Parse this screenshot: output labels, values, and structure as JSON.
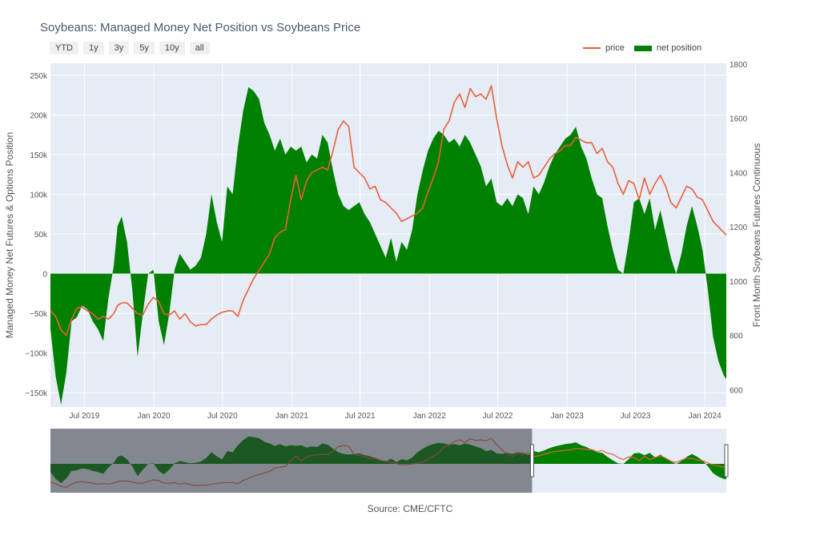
{
  "title": "Soybeans: Managed Money Net Position vs Soybeans Price",
  "range_buttons": [
    "YTD",
    "1y",
    "3y",
    "5y",
    "10y",
    "all"
  ],
  "source": "Source: CME/CFTC",
  "chart_data": {
    "type": "area",
    "x_ticks": [
      "Jul 2019",
      "Jan 2020",
      "Jul 2020",
      "Jan 2021",
      "Jul 2021",
      "Jan 2022",
      "Jul 2022",
      "Jan 2023",
      "Jul 2023",
      "Jan 2024"
    ],
    "x_range": [
      "2019-04-02",
      "2024-02-27"
    ],
    "ylabel": "Managed Money Net Futures & Options Position",
    "y2label": "Front Month Soybeans Futures Continuous",
    "yticks": [
      "250k",
      "200k",
      "150k",
      "100k",
      "50k",
      "0",
      "−50k",
      "−100k",
      "−150k"
    ],
    "y2ticks": [
      "1800",
      "1600",
      "1400",
      "1200",
      "1000",
      "800",
      "600"
    ],
    "ylim": [
      -168000,
      265000
    ],
    "y2lim": [
      536,
      1803
    ],
    "legend": {
      "price": "price",
      "net_position": "net position",
      "placement": "top-right"
    },
    "colors": {
      "price": "#e8603c",
      "net_position": "#008000",
      "plot_bg": "#e5ecf6"
    },
    "range_selector_start": "2022-09-30",
    "series": [
      {
        "name": "net position",
        "points": [
          [
            "2019-04-02",
            -70000
          ],
          [
            "2019-04-16",
            -130000
          ],
          [
            "2019-04-30",
            -165000
          ],
          [
            "2019-05-14",
            -125000
          ],
          [
            "2019-05-28",
            -60000
          ],
          [
            "2019-06-11",
            -55000
          ],
          [
            "2019-06-25",
            -40000
          ],
          [
            "2019-07-09",
            -45000
          ],
          [
            "2019-07-23",
            -60000
          ],
          [
            "2019-08-06",
            -70000
          ],
          [
            "2019-08-20",
            -85000
          ],
          [
            "2019-09-03",
            -30000
          ],
          [
            "2019-09-17",
            10000
          ],
          [
            "2019-09-27",
            60000
          ],
          [
            "2019-10-08",
            72000
          ],
          [
            "2019-10-22",
            40000
          ],
          [
            "2019-11-05",
            -20000
          ],
          [
            "2019-11-19",
            -105000
          ],
          [
            "2019-12-03",
            -50000
          ],
          [
            "2019-12-17",
            0
          ],
          [
            "2019-12-31",
            5000
          ],
          [
            "2020-01-14",
            -60000
          ],
          [
            "2020-01-28",
            -90000
          ],
          [
            "2020-02-11",
            -50000
          ],
          [
            "2020-02-25",
            5000
          ],
          [
            "2020-03-10",
            25000
          ],
          [
            "2020-03-24",
            15000
          ],
          [
            "2020-04-07",
            5000
          ],
          [
            "2020-04-21",
            10000
          ],
          [
            "2020-05-05",
            20000
          ],
          [
            "2020-05-19",
            50000
          ],
          [
            "2020-06-02",
            100000
          ],
          [
            "2020-06-16",
            65000
          ],
          [
            "2020-06-30",
            40000
          ],
          [
            "2020-07-14",
            110000
          ],
          [
            "2020-07-28",
            100000
          ],
          [
            "2020-08-11",
            160000
          ],
          [
            "2020-08-25",
            205000
          ],
          [
            "2020-09-08",
            235000
          ],
          [
            "2020-09-22",
            230000
          ],
          [
            "2020-10-06",
            220000
          ],
          [
            "2020-10-20",
            190000
          ],
          [
            "2020-11-03",
            175000
          ],
          [
            "2020-11-17",
            155000
          ],
          [
            "2020-12-01",
            170000
          ],
          [
            "2020-12-15",
            150000
          ],
          [
            "2020-12-29",
            160000
          ],
          [
            "2021-01-12",
            155000
          ],
          [
            "2021-01-26",
            160000
          ],
          [
            "2021-02-09",
            140000
          ],
          [
            "2021-02-23",
            150000
          ],
          [
            "2021-03-09",
            145000
          ],
          [
            "2021-03-23",
            175000
          ],
          [
            "2021-04-06",
            165000
          ],
          [
            "2021-04-20",
            130000
          ],
          [
            "2021-05-04",
            100000
          ],
          [
            "2021-05-18",
            85000
          ],
          [
            "2021-06-01",
            80000
          ],
          [
            "2021-06-15",
            85000
          ],
          [
            "2021-06-29",
            90000
          ],
          [
            "2021-07-13",
            75000
          ],
          [
            "2021-07-27",
            65000
          ],
          [
            "2021-08-10",
            50000
          ],
          [
            "2021-08-24",
            35000
          ],
          [
            "2021-09-07",
            20000
          ],
          [
            "2021-09-21",
            45000
          ],
          [
            "2021-10-05",
            15000
          ],
          [
            "2021-10-19",
            40000
          ],
          [
            "2021-11-02",
            30000
          ],
          [
            "2021-11-16",
            55000
          ],
          [
            "2021-11-30",
            100000
          ],
          [
            "2021-12-14",
            130000
          ],
          [
            "2021-12-28",
            155000
          ],
          [
            "2022-01-11",
            170000
          ],
          [
            "2022-01-25",
            180000
          ],
          [
            "2022-02-08",
            175000
          ],
          [
            "2022-02-22",
            165000
          ],
          [
            "2022-03-08",
            170000
          ],
          [
            "2022-03-22",
            160000
          ],
          [
            "2022-04-05",
            175000
          ],
          [
            "2022-04-19",
            165000
          ],
          [
            "2022-05-03",
            150000
          ],
          [
            "2022-05-17",
            135000
          ],
          [
            "2022-05-31",
            110000
          ],
          [
            "2022-06-14",
            120000
          ],
          [
            "2022-06-28",
            90000
          ],
          [
            "2022-07-12",
            85000
          ],
          [
            "2022-07-26",
            95000
          ],
          [
            "2022-08-09",
            85000
          ],
          [
            "2022-08-23",
            100000
          ],
          [
            "2022-09-06",
            95000
          ],
          [
            "2022-09-20",
            75000
          ],
          [
            "2022-10-04",
            110000
          ],
          [
            "2022-10-18",
            100000
          ],
          [
            "2022-11-01",
            115000
          ],
          [
            "2022-11-15",
            135000
          ],
          [
            "2022-11-29",
            150000
          ],
          [
            "2022-12-13",
            160000
          ],
          [
            "2022-12-27",
            170000
          ],
          [
            "2023-01-10",
            175000
          ],
          [
            "2023-01-24",
            185000
          ],
          [
            "2023-02-07",
            160000
          ],
          [
            "2023-02-21",
            145000
          ],
          [
            "2023-03-07",
            120000
          ],
          [
            "2023-03-21",
            100000
          ],
          [
            "2023-04-04",
            95000
          ],
          [
            "2023-04-18",
            60000
          ],
          [
            "2023-05-02",
            30000
          ],
          [
            "2023-05-16",
            5000
          ],
          [
            "2023-05-30",
            0
          ],
          [
            "2023-06-13",
            40000
          ],
          [
            "2023-06-27",
            90000
          ],
          [
            "2023-07-11",
            95000
          ],
          [
            "2023-07-25",
            75000
          ],
          [
            "2023-08-08",
            95000
          ],
          [
            "2023-08-22",
            55000
          ],
          [
            "2023-09-05",
            80000
          ],
          [
            "2023-09-19",
            50000
          ],
          [
            "2023-10-03",
            20000
          ],
          [
            "2023-10-17",
            0
          ],
          [
            "2023-10-31",
            25000
          ],
          [
            "2023-11-14",
            60000
          ],
          [
            "2023-11-28",
            85000
          ],
          [
            "2023-12-12",
            60000
          ],
          [
            "2023-12-26",
            30000
          ],
          [
            "2024-01-09",
            -20000
          ],
          [
            "2024-01-23",
            -80000
          ],
          [
            "2024-02-06",
            -110000
          ],
          [
            "2024-02-20",
            -128000
          ],
          [
            "2024-02-27",
            -133000
          ]
        ]
      },
      {
        "name": "price",
        "points": [
          [
            "2019-04-02",
            890
          ],
          [
            "2019-04-16",
            870
          ],
          [
            "2019-04-30",
            820
          ],
          [
            "2019-05-14",
            800
          ],
          [
            "2019-05-28",
            860
          ],
          [
            "2019-06-11",
            900
          ],
          [
            "2019-06-25",
            905
          ],
          [
            "2019-07-09",
            890
          ],
          [
            "2019-07-23",
            880
          ],
          [
            "2019-08-06",
            860
          ],
          [
            "2019-08-20",
            870
          ],
          [
            "2019-09-03",
            860
          ],
          [
            "2019-09-17",
            880
          ],
          [
            "2019-09-27",
            910
          ],
          [
            "2019-10-08",
            920
          ],
          [
            "2019-10-22",
            920
          ],
          [
            "2019-11-05",
            900
          ],
          [
            "2019-11-19",
            880
          ],
          [
            "2019-12-03",
            875
          ],
          [
            "2019-12-17",
            915
          ],
          [
            "2019-12-31",
            940
          ],
          [
            "2020-01-14",
            925
          ],
          [
            "2020-01-28",
            880
          ],
          [
            "2020-02-11",
            875
          ],
          [
            "2020-02-25",
            890
          ],
          [
            "2020-03-10",
            860
          ],
          [
            "2020-03-24",
            880
          ],
          [
            "2020-04-07",
            850
          ],
          [
            "2020-04-21",
            835
          ],
          [
            "2020-05-05",
            840
          ],
          [
            "2020-05-19",
            840
          ],
          [
            "2020-06-02",
            860
          ],
          [
            "2020-06-16",
            875
          ],
          [
            "2020-06-30",
            885
          ],
          [
            "2020-07-14",
            890
          ],
          [
            "2020-07-28",
            890
          ],
          [
            "2020-08-11",
            870
          ],
          [
            "2020-08-25",
            930
          ],
          [
            "2020-09-08",
            970
          ],
          [
            "2020-09-22",
            1010
          ],
          [
            "2020-10-06",
            1040
          ],
          [
            "2020-10-20",
            1070
          ],
          [
            "2020-11-03",
            1100
          ],
          [
            "2020-11-17",
            1160
          ],
          [
            "2020-12-01",
            1180
          ],
          [
            "2020-12-15",
            1190
          ],
          [
            "2020-12-29",
            1300
          ],
          [
            "2021-01-12",
            1390
          ],
          [
            "2021-01-26",
            1300
          ],
          [
            "2021-02-09",
            1370
          ],
          [
            "2021-02-23",
            1400
          ],
          [
            "2021-03-09",
            1410
          ],
          [
            "2021-03-23",
            1420
          ],
          [
            "2021-04-06",
            1410
          ],
          [
            "2021-04-20",
            1480
          ],
          [
            "2021-05-04",
            1560
          ],
          [
            "2021-05-18",
            1590
          ],
          [
            "2021-06-01",
            1570
          ],
          [
            "2021-06-15",
            1420
          ],
          [
            "2021-06-29",
            1400
          ],
          [
            "2021-07-13",
            1380
          ],
          [
            "2021-07-27",
            1340
          ],
          [
            "2021-08-10",
            1350
          ],
          [
            "2021-08-24",
            1300
          ],
          [
            "2021-09-07",
            1290
          ],
          [
            "2021-09-21",
            1270
          ],
          [
            "2021-10-05",
            1250
          ],
          [
            "2021-10-19",
            1220
          ],
          [
            "2021-11-02",
            1230
          ],
          [
            "2021-11-16",
            1240
          ],
          [
            "2021-11-30",
            1250
          ],
          [
            "2021-12-14",
            1270
          ],
          [
            "2021-12-28",
            1330
          ],
          [
            "2022-01-11",
            1380
          ],
          [
            "2022-01-25",
            1440
          ],
          [
            "2022-02-08",
            1560
          ],
          [
            "2022-02-22",
            1590
          ],
          [
            "2022-03-08",
            1660
          ],
          [
            "2022-03-22",
            1690
          ],
          [
            "2022-04-05",
            1640
          ],
          [
            "2022-04-19",
            1710
          ],
          [
            "2022-05-03",
            1680
          ],
          [
            "2022-05-17",
            1690
          ],
          [
            "2022-05-31",
            1670
          ],
          [
            "2022-06-14",
            1720
          ],
          [
            "2022-06-28",
            1600
          ],
          [
            "2022-07-12",
            1500
          ],
          [
            "2022-07-26",
            1430
          ],
          [
            "2022-08-09",
            1380
          ],
          [
            "2022-08-23",
            1440
          ],
          [
            "2022-09-06",
            1420
          ],
          [
            "2022-09-20",
            1440
          ],
          [
            "2022-10-04",
            1380
          ],
          [
            "2022-10-18",
            1390
          ],
          [
            "2022-11-01",
            1420
          ],
          [
            "2022-11-15",
            1450
          ],
          [
            "2022-11-29",
            1470
          ],
          [
            "2022-12-13",
            1480
          ],
          [
            "2022-12-27",
            1500
          ],
          [
            "2023-01-10",
            1500
          ],
          [
            "2023-01-24",
            1530
          ],
          [
            "2023-02-07",
            1520
          ],
          [
            "2023-02-21",
            1510
          ],
          [
            "2023-03-07",
            1510
          ],
          [
            "2023-03-21",
            1470
          ],
          [
            "2023-04-04",
            1490
          ],
          [
            "2023-04-18",
            1440
          ],
          [
            "2023-05-02",
            1420
          ],
          [
            "2023-05-16",
            1360
          ],
          [
            "2023-05-30",
            1320
          ],
          [
            "2023-06-13",
            1370
          ],
          [
            "2023-06-27",
            1360
          ],
          [
            "2023-07-11",
            1300
          ],
          [
            "2023-07-25",
            1380
          ],
          [
            "2023-08-08",
            1320
          ],
          [
            "2023-08-22",
            1360
          ],
          [
            "2023-09-05",
            1390
          ],
          [
            "2023-09-19",
            1350
          ],
          [
            "2023-10-03",
            1290
          ],
          [
            "2023-10-17",
            1270
          ],
          [
            "2023-10-31",
            1310
          ],
          [
            "2023-11-14",
            1350
          ],
          [
            "2023-11-28",
            1340
          ],
          [
            "2023-12-12",
            1310
          ],
          [
            "2023-12-26",
            1300
          ],
          [
            "2024-01-09",
            1260
          ],
          [
            "2024-01-23",
            1220
          ],
          [
            "2024-02-06",
            1200
          ],
          [
            "2024-02-20",
            1180
          ],
          [
            "2024-02-27",
            1170
          ]
        ]
      }
    ]
  }
}
